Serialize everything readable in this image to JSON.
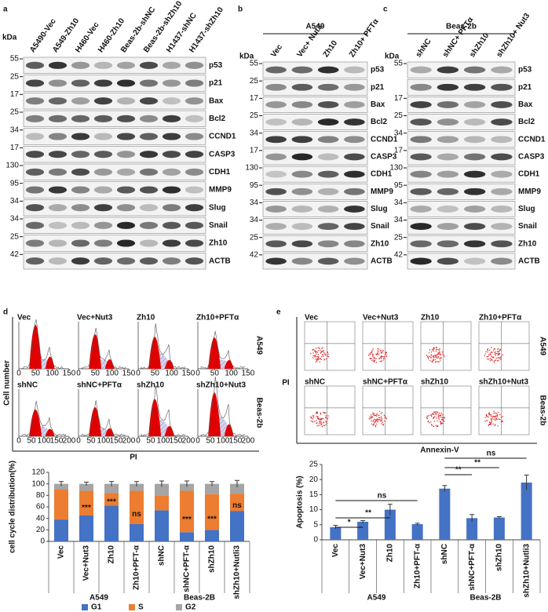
{
  "panel_labels": [
    "a",
    "b",
    "c",
    "d",
    "e"
  ],
  "blots": [
    {
      "kda_label": "kDa",
      "lanes": [
        "A5490-Vec",
        "A549-Zh10",
        "H460-Vec",
        "H460-Zh10",
        "Beas-2b-shNC",
        "Beas-2b-shZh10",
        "H1437-shNC",
        "H1437-shZh10"
      ],
      "markers": [
        55,
        25,
        17,
        25,
        34,
        17,
        130,
        95,
        34,
        34,
        25,
        42
      ],
      "proteins": [
        "p53",
        "p21",
        "Bax",
        "Bcl2",
        "CCND1",
        "CASP3",
        "CDH1",
        "MMP9",
        "Slug",
        "Snail",
        "Zh10",
        "ACTB"
      ]
    },
    {
      "header": "A549",
      "kda_label": "kDa",
      "lanes": [
        "Vec",
        "Vec+ Nut3",
        "Zh10",
        "Zh10+ PFTα"
      ],
      "markers": [
        55,
        25,
        17,
        25,
        34,
        17,
        130,
        95,
        34,
        34,
        25,
        42
      ],
      "proteins": [
        "p53",
        "p21",
        "Bax",
        "Bcl2",
        "CCND1",
        "CASP3",
        "CDH1",
        "MMP9",
        "Slug",
        "Snail",
        "Zh10",
        "ACTB"
      ]
    },
    {
      "header": "Beas-2b",
      "kda_label": "kDa",
      "lanes": [
        "shNC",
        "shNC+ PFTα",
        "shZh10",
        "shZh10+ Nut3"
      ],
      "markers": [
        55,
        null,
        17,
        25,
        34,
        17,
        130,
        95,
        34,
        34,
        25,
        42
      ],
      "proteins": [
        "p53",
        "p21",
        "Bax",
        "Bcl2",
        "CCND1",
        "CASP3",
        "CDH1",
        "MMP9",
        "Slug",
        "Snail",
        "Zh10",
        "ACTB"
      ]
    }
  ],
  "flow_cycle": {
    "y_label": "Cell number",
    "x_label": "PI",
    "rows": [
      {
        "group": "A549",
        "xticks": [
          0,
          50,
          100,
          150
        ],
        "titles": [
          "Vec",
          "Vec+Nut3",
          "Zh10",
          "Zh10+PFTα"
        ]
      },
      {
        "group": "Beas-2b",
        "xticks": [
          0,
          50,
          100,
          150,
          200
        ],
        "titles": [
          "shNC",
          "shNC+PFTα",
          "shZh10",
          "shZh10+Nut3"
        ]
      }
    ]
  },
  "flow_apoptosis": {
    "y_label": "PI",
    "x_label": "Annexin-V",
    "rows": [
      {
        "group": "A549",
        "titles": [
          "Vec",
          "Vec+Nut3",
          "Zh10",
          "Zh10+PFTα"
        ]
      },
      {
        "group": "Beas-2b",
        "titles": [
          "shNC",
          "shNC+PFTα",
          "shZh10",
          "shZh10+Nut3"
        ]
      }
    ]
  },
  "chart_data": [
    {
      "type": "stacked_bar",
      "ylabel": "cell cycle distribution(%)",
      "categories": [
        "Vec",
        "Vec+Nut3",
        "Zh10",
        "Zh10+PFT-α",
        "shNC",
        "shNC+PFT-α",
        "shZh10",
        "shZh10+Nutli3"
      ],
      "groups": [
        "A549",
        "Beas-2B"
      ],
      "series": [
        {
          "name": "G1",
          "color": "#4472c4",
          "values": [
            38,
            45,
            62,
            30,
            54,
            16,
            20,
            53
          ]
        },
        {
          "name": "S",
          "color": "#ed7d31",
          "values": [
            52,
            43,
            22,
            58,
            26,
            72,
            62,
            30
          ]
        },
        {
          "name": "G2",
          "color": "#a5a5a5",
          "values": [
            10,
            12,
            16,
            12,
            20,
            12,
            18,
            17
          ],
          "errors": [
            4,
            3,
            4,
            4,
            5,
            5,
            4,
            6
          ]
        }
      ],
      "annotations": [
        null,
        "***",
        "***",
        "ns",
        null,
        "***",
        "***",
        "ns"
      ],
      "ylim": [
        0,
        120
      ],
      "yticks": [
        0,
        20,
        40,
        60,
        80,
        100,
        120
      ],
      "legend": "bottom"
    },
    {
      "type": "bar",
      "ylabel": "Apoptosis (%)",
      "categories": [
        "Vec",
        "Vec+Nut3",
        "Zh10",
        "Zh10+PFT-α",
        "shNC",
        "shNC+PFT-α",
        "shZh10",
        "shZh10+Nutli3"
      ],
      "groups": [
        "A549",
        "Beas-2B"
      ],
      "values": [
        4.2,
        6,
        10,
        5.2,
        17,
        7.2,
        7.4,
        19
      ],
      "errors": [
        0.6,
        0.4,
        1.8,
        0.3,
        1,
        1.2,
        0.3,
        2.5
      ],
      "color": "#4472c4",
      "annotations": [
        "*",
        "**",
        "ns",
        "**",
        "**",
        "ns"
      ],
      "ylim": [
        0,
        25
      ],
      "yticks": [
        0,
        5,
        10,
        15,
        20,
        25
      ]
    }
  ]
}
